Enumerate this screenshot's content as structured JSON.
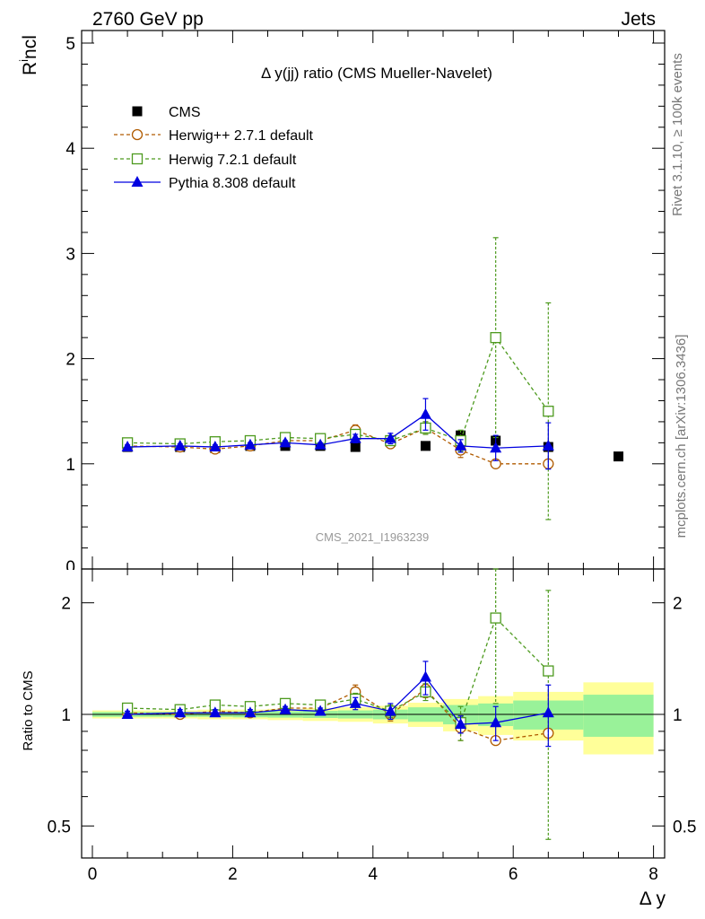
{
  "header": {
    "left": "2760 GeV pp",
    "right": "Jets"
  },
  "side": {
    "rivet": "Rivet 3.1.10, ≥ 100k events",
    "mcplots": "mcplots.cern.ch [arXiv:1306.3436]"
  },
  "chart_data": {
    "type": "scatter",
    "title": "Δ y(jj) ratio (CMS Mueller-Navelet)",
    "watermark": "CMS_2021_I1963239",
    "xlabel": "Δ y",
    "ylabel_main": "R^incl",
    "ylabel_ratio": "Ratio to CMS",
    "xlim": [
      -0.2,
      8.0
    ],
    "ylim_main": [
      0,
      5.2
    ],
    "ylim_ratio": [
      0.35,
      2.3
    ],
    "x_ticks": [
      "0",
      "2",
      "4",
      "6",
      "8"
    ],
    "y_ticks_main": [
      "1",
      "2",
      "3",
      "4",
      "5"
    ],
    "y_ticks_ratio": [
      "0.5",
      "1",
      "2"
    ],
    "legend_position": "top-left",
    "series": [
      {
        "name": "CMS",
        "style": "data",
        "color": "#000000",
        "x": [
          0.5,
          1.25,
          1.75,
          2.25,
          2.75,
          3.25,
          3.75,
          4.25,
          4.75,
          5.25,
          5.75,
          6.5,
          7.5
        ],
        "y": [
          1.16,
          1.16,
          1.15,
          1.17,
          1.17,
          1.17,
          1.16,
          1.21,
          1.17,
          1.27,
          1.22,
          1.16,
          1.07
        ]
      },
      {
        "name": "Herwig++ 2.7.1 default",
        "style": "circle",
        "color": "#b05b00",
        "x": [
          0.5,
          1.25,
          1.75,
          2.25,
          2.75,
          3.25,
          3.75,
          4.25,
          4.75,
          5.25,
          5.75,
          6.5
        ],
        "y": [
          1.17,
          1.16,
          1.14,
          1.17,
          1.22,
          1.22,
          1.32,
          1.19,
          1.34,
          1.13,
          1.0,
          1.0
        ],
        "err": [
          0.02,
          0.02,
          0.02,
          0.02,
          0.03,
          0.03,
          0.05,
          0.04,
          0.06,
          0.07,
          0,
          0
        ],
        "ratio": [
          1.01,
          1.0,
          1.02,
          1.01,
          1.04,
          1.04,
          1.15,
          1.0,
          1.17,
          0.92,
          0.85,
          0.89
        ],
        "ratio_err": [
          0.02,
          0.02,
          0.02,
          0.02,
          0.03,
          0.03,
          0.05,
          0.04,
          0.06,
          0.07,
          0,
          0
        ]
      },
      {
        "name": "Herwig 7.2.1 default",
        "style": "square",
        "color": "#4d9a1e",
        "x": [
          0.5,
          1.25,
          1.75,
          2.25,
          2.75,
          3.25,
          3.75,
          4.25,
          4.75,
          5.25,
          5.75,
          6.5
        ],
        "y": [
          1.2,
          1.19,
          1.21,
          1.22,
          1.25,
          1.24,
          1.28,
          1.22,
          1.34,
          1.22,
          2.2,
          1.5
        ],
        "err": [
          0.02,
          0.02,
          0.02,
          0.02,
          0.03,
          0.03,
          0.04,
          0.04,
          0.06,
          0.1,
          0.95,
          1.03
        ],
        "ratio": [
          1.04,
          1.03,
          1.06,
          1.05,
          1.07,
          1.06,
          1.1,
          1.02,
          1.15,
          0.95,
          1.82,
          1.31
        ],
        "ratio_err": [
          0.02,
          0.02,
          0.02,
          0.02,
          0.03,
          0.03,
          0.04,
          0.04,
          0.06,
          0.1,
          0.75,
          0.85
        ]
      },
      {
        "name": "Pythia 8.308 default",
        "style": "triangle",
        "color": "#0000e0",
        "x": [
          0.5,
          1.25,
          1.75,
          2.25,
          2.75,
          3.25,
          3.75,
          4.25,
          4.75,
          5.25,
          5.75,
          6.5
        ],
        "y": [
          1.16,
          1.17,
          1.16,
          1.18,
          1.2,
          1.18,
          1.24,
          1.24,
          1.47,
          1.17,
          1.15,
          1.17
        ],
        "err": [
          0.02,
          0.02,
          0.02,
          0.02,
          0.02,
          0.02,
          0.04,
          0.05,
          0.15,
          0.06,
          0.12,
          0.22
        ],
        "ratio": [
          1.0,
          1.01,
          1.01,
          1.01,
          1.03,
          1.02,
          1.07,
          1.02,
          1.26,
          0.94,
          0.95,
          1.01
        ],
        "ratio_err": [
          0.02,
          0.02,
          0.02,
          0.02,
          0.02,
          0.02,
          0.04,
          0.05,
          0.13,
          0.05,
          0.1,
          0.19
        ]
      }
    ],
    "uncertainty_bands": {
      "x_edges": [
        0,
        0.5,
        1.0,
        1.5,
        2.0,
        2.5,
        3.0,
        3.5,
        4.0,
        4.5,
        5.0,
        5.5,
        6.0,
        7.0,
        8.0
      ],
      "inner": [
        0.015,
        0.015,
        0.015,
        0.015,
        0.018,
        0.02,
        0.022,
        0.025,
        0.03,
        0.045,
        0.06,
        0.07,
        0.09,
        0.13
      ],
      "outer": [
        0.025,
        0.025,
        0.025,
        0.03,
        0.03,
        0.035,
        0.04,
        0.045,
        0.055,
        0.075,
        0.1,
        0.12,
        0.15,
        0.22
      ],
      "inner_color": "#99f299",
      "outer_color": "#ffff99"
    }
  }
}
